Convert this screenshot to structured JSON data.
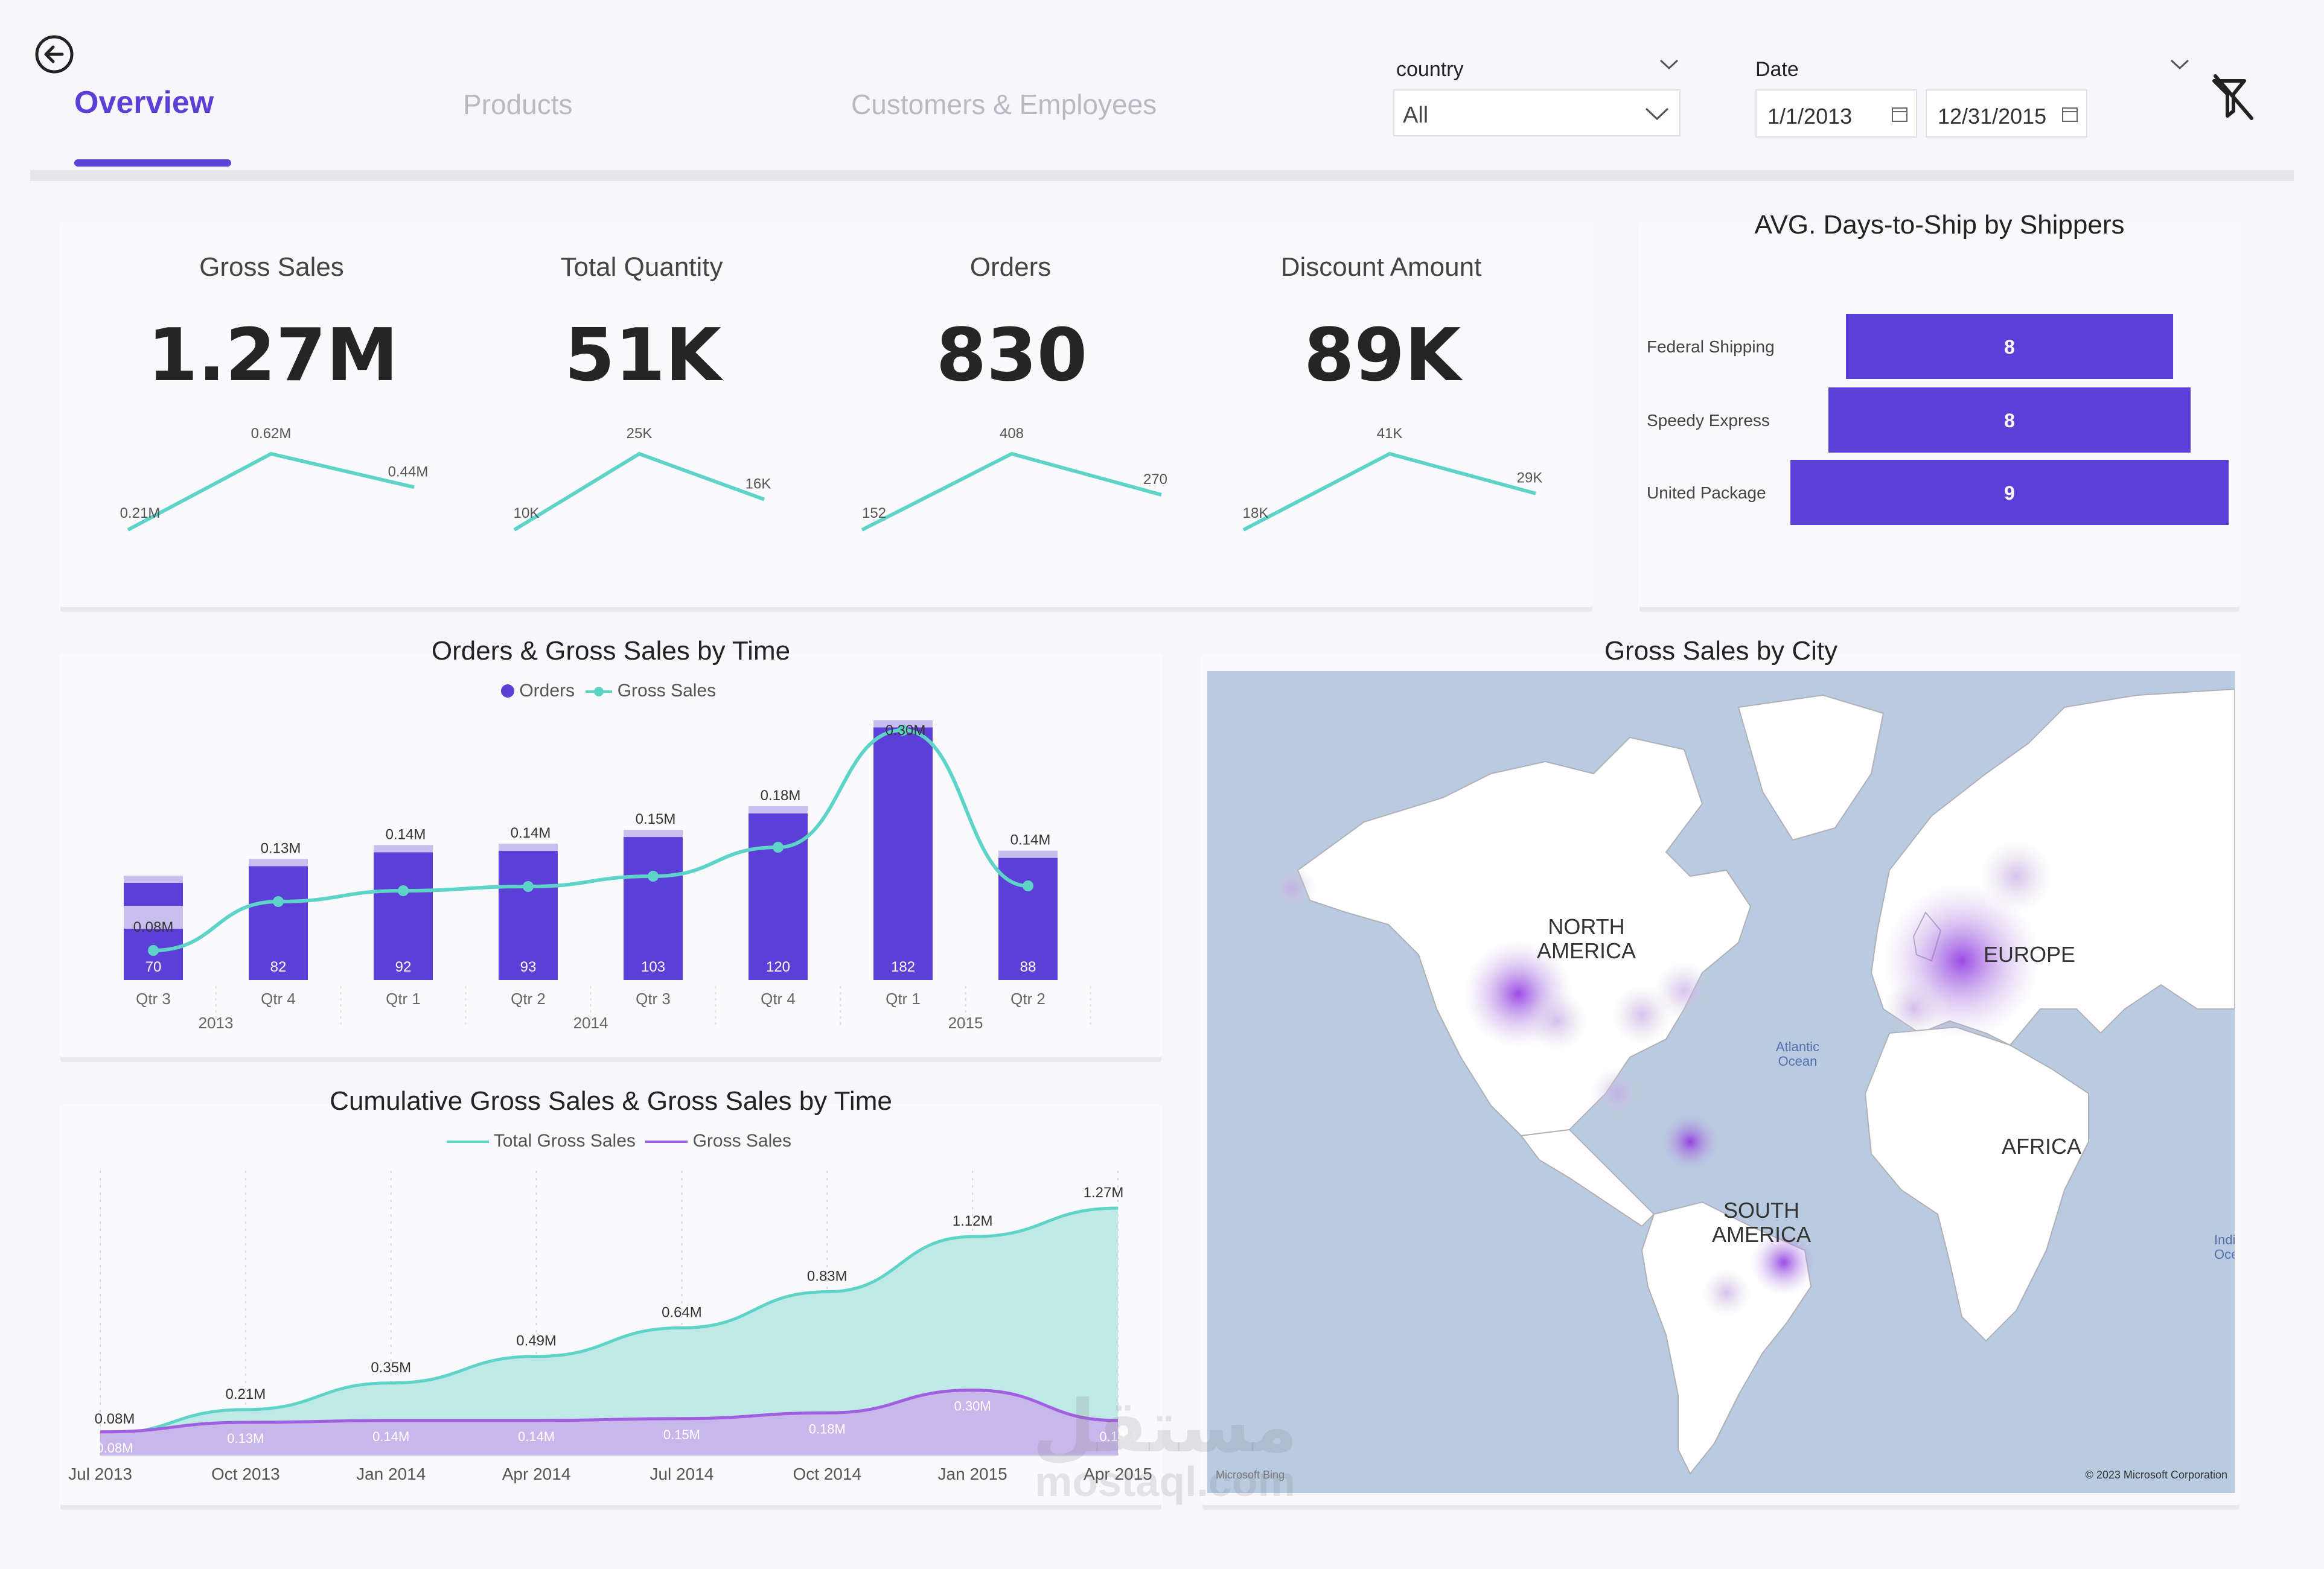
{
  "header": {
    "tabs": [
      {
        "label": "Overview",
        "active": true
      },
      {
        "label": "Products",
        "active": false
      },
      {
        "label": "Customers & Employees",
        "active": false
      }
    ],
    "country_slicer": {
      "title": "country",
      "value": "All"
    },
    "date_slicer": {
      "title": "Date",
      "start": "1/1/2013",
      "end": "12/31/2015"
    }
  },
  "kpis": [
    {
      "label": "Gross Sales",
      "value": "1.27M",
      "trend": {
        "labels": [
          "0.21M",
          "0.62M",
          "0.44M"
        ],
        "values": [
          0.21,
          0.62,
          0.44
        ]
      }
    },
    {
      "label": "Total Quantity",
      "value": "51K",
      "trend": {
        "labels": [
          "10K",
          "25K",
          "16K"
        ],
        "values": [
          10,
          25,
          16
        ]
      }
    },
    {
      "label": "Orders",
      "value": "830",
      "trend": {
        "labels": [
          "152",
          "408",
          "270"
        ],
        "values": [
          152,
          408,
          270
        ]
      }
    },
    {
      "label": "Discount Amount",
      "value": "89K",
      "trend": {
        "labels": [
          "18K",
          "41K",
          "29K"
        ],
        "values": [
          18,
          41,
          29
        ]
      }
    }
  ],
  "shippers_chart": {
    "title": "AVG. Days-to-Ship by Shippers",
    "type": "bar",
    "categories": [
      "Federal Shipping",
      "Speedy Express",
      "United Package"
    ],
    "values": [
      8,
      8,
      9
    ],
    "value_labels": [
      "8",
      "8",
      "9"
    ]
  },
  "orders_sales_chart": {
    "title": "Orders & Gross Sales by Time",
    "legend": [
      "Orders",
      "Gross Sales"
    ],
    "quarters": [
      "Qtr 3",
      "Qtr 4",
      "Qtr 1",
      "Qtr 2",
      "Qtr 3",
      "Qtr 4",
      "Qtr 1",
      "Qtr 2"
    ],
    "years": [
      {
        "label": "2013",
        "span": [
          0,
          1
        ]
      },
      {
        "label": "2014",
        "span": [
          2,
          5
        ]
      },
      {
        "label": "2015",
        "span": [
          6,
          7
        ]
      }
    ],
    "orders": [
      70,
      82,
      92,
      93,
      103,
      120,
      182,
      88
    ],
    "order_labels": [
      "70",
      "82",
      "92",
      "93",
      "103",
      "120",
      "182",
      "88"
    ],
    "gross_sales": [
      0.08,
      0.13,
      0.14,
      0.14,
      0.15,
      0.18,
      0.3,
      0.14
    ],
    "gross_labels": [
      "0.08M",
      "0.13M",
      "0.14M",
      "0.14M",
      "0.15M",
      "0.18M",
      "0.30M",
      "0.14M"
    ]
  },
  "cumulative_chart": {
    "title": "Cumulative Gross Sales & Gross Sales by Time",
    "legend": [
      "Total Gross Sales",
      "Gross Sales"
    ],
    "x_labels": [
      "Jul 2013",
      "Oct 2013",
      "Jan 2014",
      "Apr 2014",
      "Jul 2014",
      "Oct 2014",
      "Jan 2015",
      "Apr 2015"
    ],
    "cumulative": [
      0.08,
      0.21,
      0.35,
      0.49,
      0.64,
      0.83,
      1.12,
      1.27
    ],
    "cumulative_labels": [
      "0.08M",
      "0.21M",
      "0.35M",
      "0.49M",
      "0.64M",
      "0.83M",
      "1.12M",
      "1.27M"
    ],
    "gross": [
      0.08,
      0.13,
      0.14,
      0.14,
      0.15,
      0.18,
      0.3,
      0.14
    ],
    "gross_labels": [
      "0.08M",
      "0.13M",
      "0.14M",
      "0.14M",
      "0.15M",
      "0.18M",
      "0.30M",
      "0.14M"
    ]
  },
  "map": {
    "title": "Gross Sales by City",
    "labels": [
      "NORTH AMERICA",
      "EUROPE",
      "SOUTH AMERICA",
      "AFRICA",
      "Atlantic Ocean",
      "Indian Ocean"
    ],
    "credit_left": "Microsoft Bing",
    "credit_right": "© 2023 Microsoft Corporation"
  },
  "watermark": {
    "arabic": "مستقل",
    "latin": "mostaql.com"
  },
  "chart_data": [
    {
      "type": "line",
      "title": "Gross Sales",
      "x": [
        "1",
        "2",
        "3"
      ],
      "values": [
        0.21,
        0.62,
        0.44
      ]
    },
    {
      "type": "line",
      "title": "Total Quantity",
      "x": [
        "1",
        "2",
        "3"
      ],
      "values": [
        10,
        25,
        16
      ]
    },
    {
      "type": "line",
      "title": "Orders",
      "x": [
        "1",
        "2",
        "3"
      ],
      "values": [
        152,
        408,
        270
      ]
    },
    {
      "type": "line",
      "title": "Discount Amount",
      "x": [
        "1",
        "2",
        "3"
      ],
      "values": [
        18,
        41,
        29
      ]
    },
    {
      "type": "bar",
      "title": "AVG. Days-to-Ship by Shippers",
      "categories": [
        "Federal Shipping",
        "Speedy Express",
        "United Package"
      ],
      "values": [
        8,
        8,
        9
      ]
    },
    {
      "type": "bar",
      "title": "Orders & Gross Sales by Time",
      "categories": [
        "Qtr 3 2013",
        "Qtr 4 2013",
        "Qtr 1 2014",
        "Qtr 2 2014",
        "Qtr 3 2014",
        "Qtr 4 2014",
        "Qtr 1 2015",
        "Qtr 2 2015"
      ],
      "series": [
        {
          "name": "Orders",
          "values": [
            70,
            82,
            92,
            93,
            103,
            120,
            182,
            88
          ]
        },
        {
          "name": "Gross Sales",
          "values": [
            0.08,
            0.13,
            0.14,
            0.14,
            0.15,
            0.18,
            0.3,
            0.14
          ]
        }
      ]
    },
    {
      "type": "area",
      "title": "Cumulative Gross Sales & Gross Sales by Time",
      "x": [
        "Jul 2013",
        "Oct 2013",
        "Jan 2014",
        "Apr 2014",
        "Jul 2014",
        "Oct 2014",
        "Jan 2015",
        "Apr 2015"
      ],
      "series": [
        {
          "name": "Total Gross Sales",
          "values": [
            0.08,
            0.21,
            0.35,
            0.49,
            0.64,
            0.83,
            1.12,
            1.27
          ]
        },
        {
          "name": "Gross Sales",
          "values": [
            0.08,
            0.13,
            0.14,
            0.14,
            0.15,
            0.18,
            0.3,
            0.14
          ]
        }
      ]
    }
  ]
}
